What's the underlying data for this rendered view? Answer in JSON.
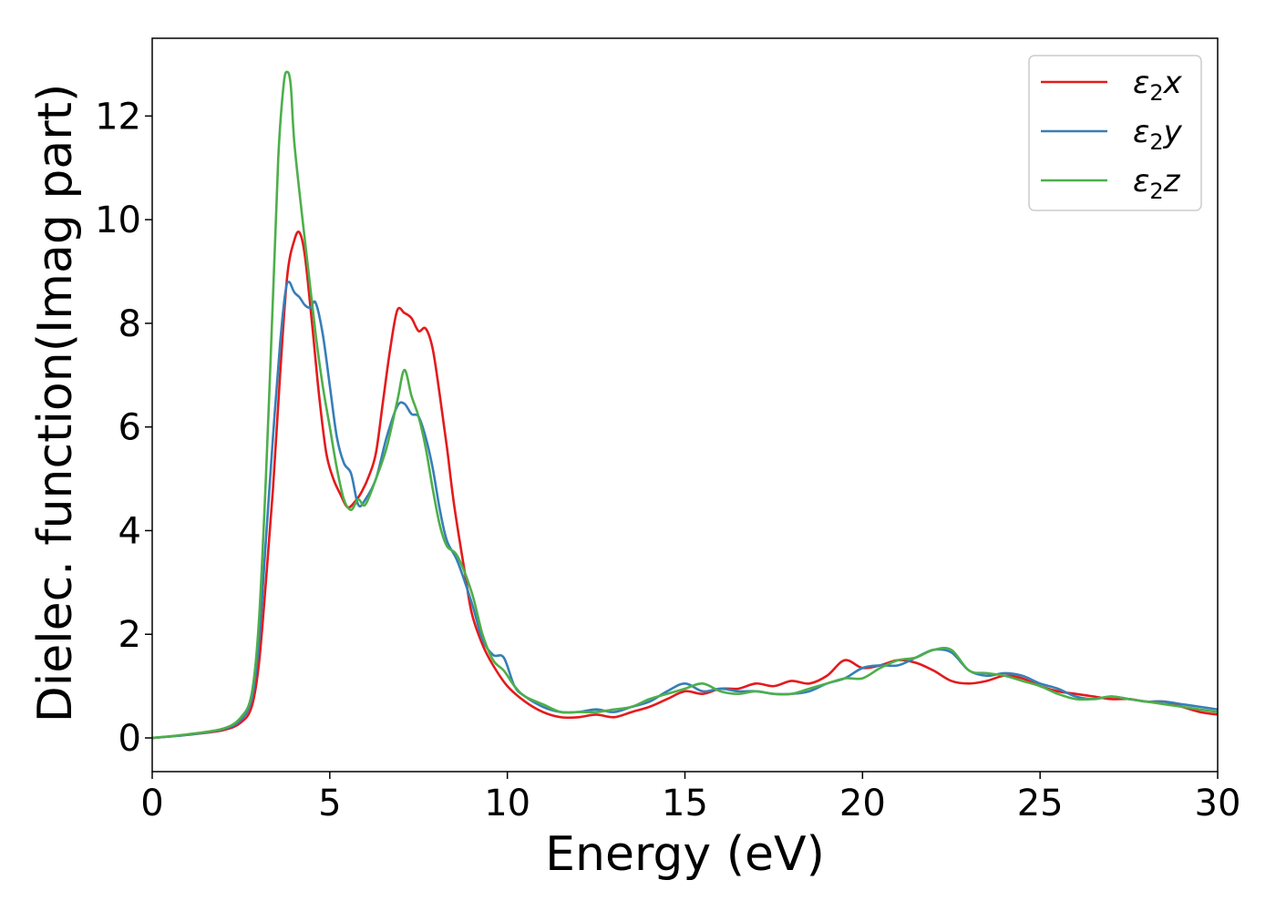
{
  "chart_data": {
    "type": "line",
    "title": "",
    "xlabel": "Energy (eV)",
    "ylabel": "Dielec. function(Imag part)",
    "xlim": [
      0,
      30
    ],
    "ylim": [
      -0.65,
      13.5
    ],
    "xticks": [
      0,
      5,
      10,
      15,
      20,
      25,
      30
    ],
    "yticks": [
      0,
      2,
      4,
      6,
      8,
      10,
      12
    ],
    "grid": false,
    "legend_position": "top-right",
    "series": [
      {
        "name": "ε₂x",
        "legend_main": "ε",
        "legend_sub": "2",
        "legend_axis": "x",
        "color": "#e41a1c",
        "x": [
          0,
          1,
          2,
          2.5,
          2.8,
          3.0,
          3.2,
          3.4,
          3.6,
          3.8,
          4.0,
          4.15,
          4.3,
          4.5,
          4.7,
          4.9,
          5.1,
          5.3,
          5.5,
          5.7,
          5.9,
          6.1,
          6.3,
          6.5,
          6.7,
          6.9,
          7.1,
          7.3,
          7.5,
          7.7,
          7.9,
          8.1,
          8.3,
          8.5,
          8.8,
          9.0,
          9.3,
          9.6,
          10.0,
          10.5,
          11.0,
          11.5,
          12.0,
          12.5,
          13.0,
          13.5,
          14.0,
          14.5,
          15.0,
          15.5,
          16.0,
          16.5,
          17.0,
          17.5,
          18.0,
          18.5,
          19.0,
          19.5,
          20.0,
          20.5,
          21.0,
          21.5,
          22.0,
          22.5,
          23.0,
          23.5,
          24.0,
          24.5,
          25.0,
          25.5,
          26.0,
          26.5,
          27.0,
          27.5,
          28.0,
          28.5,
          29.0,
          29.5,
          30.0
        ],
        "y": [
          0.0,
          0.06,
          0.15,
          0.3,
          0.6,
          1.4,
          3.0,
          4.8,
          7.0,
          8.9,
          9.6,
          9.75,
          9.3,
          8.0,
          6.6,
          5.5,
          5.0,
          4.7,
          4.45,
          4.55,
          4.75,
          5.05,
          5.5,
          6.5,
          7.5,
          8.25,
          8.2,
          8.1,
          7.85,
          7.9,
          7.5,
          6.6,
          5.6,
          4.5,
          3.2,
          2.4,
          1.8,
          1.4,
          1.0,
          0.7,
          0.5,
          0.4,
          0.4,
          0.45,
          0.4,
          0.5,
          0.6,
          0.75,
          0.9,
          0.85,
          0.95,
          0.95,
          1.05,
          1.0,
          1.1,
          1.05,
          1.2,
          1.5,
          1.35,
          1.4,
          1.5,
          1.45,
          1.3,
          1.1,
          1.05,
          1.1,
          1.2,
          1.15,
          1.0,
          0.9,
          0.85,
          0.8,
          0.75,
          0.75,
          0.7,
          0.7,
          0.6,
          0.5,
          0.45
        ]
      },
      {
        "name": "ε₂y",
        "legend_main": "ε",
        "legend_sub": "2",
        "legend_axis": "y",
        "color": "#377eb8",
        "x": [
          0,
          1,
          2,
          2.5,
          2.8,
          3.0,
          3.2,
          3.4,
          3.6,
          3.75,
          3.85,
          4.0,
          4.15,
          4.3,
          4.45,
          4.6,
          4.8,
          5.0,
          5.2,
          5.4,
          5.6,
          5.8,
          6.0,
          6.3,
          6.6,
          6.9,
          7.1,
          7.3,
          7.5,
          7.7,
          7.9,
          8.1,
          8.3,
          8.6,
          9.0,
          9.3,
          9.6,
          9.9,
          10.2,
          10.5,
          11.0,
          11.5,
          12.0,
          12.5,
          13.0,
          13.5,
          14.0,
          14.5,
          15.0,
          15.5,
          16.0,
          16.5,
          17.0,
          17.5,
          18.0,
          18.5,
          19.0,
          19.5,
          20.0,
          20.5,
          21.0,
          21.5,
          22.0,
          22.5,
          23.0,
          23.5,
          24.0,
          24.5,
          25.0,
          25.5,
          26.0,
          26.5,
          27.0,
          27.5,
          28.0,
          28.5,
          29.0,
          29.5,
          30.0
        ],
        "y": [
          0.0,
          0.06,
          0.17,
          0.35,
          0.75,
          1.8,
          3.8,
          5.8,
          7.6,
          8.6,
          8.8,
          8.6,
          8.5,
          8.35,
          8.3,
          8.4,
          7.8,
          6.8,
          5.8,
          5.3,
          5.1,
          4.5,
          4.6,
          5.0,
          5.8,
          6.4,
          6.45,
          6.25,
          6.2,
          5.8,
          5.2,
          4.4,
          3.8,
          3.4,
          2.6,
          1.9,
          1.6,
          1.55,
          1.0,
          0.8,
          0.6,
          0.5,
          0.5,
          0.55,
          0.5,
          0.6,
          0.7,
          0.9,
          1.05,
          0.9,
          0.95,
          0.9,
          0.9,
          0.85,
          0.85,
          0.9,
          1.05,
          1.15,
          1.35,
          1.4,
          1.4,
          1.55,
          1.7,
          1.65,
          1.3,
          1.2,
          1.25,
          1.2,
          1.05,
          0.95,
          0.8,
          0.75,
          0.8,
          0.75,
          0.7,
          0.7,
          0.65,
          0.6,
          0.55
        ]
      },
      {
        "name": "ε₂z",
        "legend_main": "ε",
        "legend_sub": "2",
        "legend_axis": "z",
        "color": "#4daf4a",
        "x": [
          0,
          1,
          2,
          2.5,
          2.8,
          3.0,
          3.2,
          3.4,
          3.55,
          3.7,
          3.8,
          3.9,
          4.0,
          4.2,
          4.4,
          4.6,
          4.8,
          5.0,
          5.2,
          5.4,
          5.6,
          5.8,
          6.0,
          6.3,
          6.6,
          6.9,
          7.1,
          7.3,
          7.5,
          7.7,
          7.9,
          8.1,
          8.3,
          8.6,
          9.0,
          9.3,
          9.6,
          9.9,
          10.2,
          10.5,
          11.0,
          11.5,
          12.0,
          12.5,
          13.0,
          13.5,
          14.0,
          14.5,
          15.0,
          15.5,
          16.0,
          16.5,
          17.0,
          17.5,
          18.0,
          18.5,
          19.0,
          19.5,
          20.0,
          20.5,
          21.0,
          21.5,
          22.0,
          22.5,
          23.0,
          23.5,
          24.0,
          24.5,
          25.0,
          25.5,
          26.0,
          26.5,
          27.0,
          27.5,
          28.0,
          28.5,
          29.0,
          29.5,
          30.0
        ],
        "y": [
          0.0,
          0.07,
          0.18,
          0.4,
          0.85,
          2.2,
          5.0,
          8.5,
          11.2,
          12.6,
          12.85,
          12.6,
          11.5,
          10.2,
          9.0,
          7.8,
          6.8,
          6.0,
          5.2,
          4.6,
          4.4,
          4.6,
          4.5,
          5.0,
          5.6,
          6.5,
          7.1,
          6.6,
          6.2,
          5.6,
          4.8,
          4.1,
          3.7,
          3.5,
          2.8,
          2.0,
          1.5,
          1.3,
          1.0,
          0.8,
          0.65,
          0.5,
          0.5,
          0.5,
          0.55,
          0.6,
          0.75,
          0.85,
          0.95,
          1.05,
          0.9,
          0.85,
          0.9,
          0.85,
          0.85,
          0.95,
          1.05,
          1.15,
          1.15,
          1.35,
          1.5,
          1.55,
          1.7,
          1.7,
          1.3,
          1.25,
          1.2,
          1.1,
          1.0,
          0.85,
          0.75,
          0.75,
          0.8,
          0.75,
          0.7,
          0.65,
          0.6,
          0.55,
          0.5
        ]
      }
    ]
  }
}
